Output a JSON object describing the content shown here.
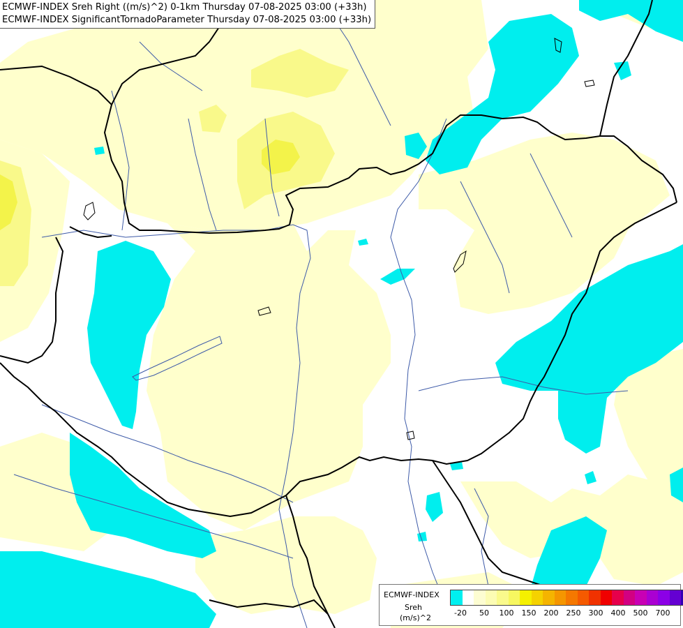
{
  "titles": {
    "line1": "ECMWF-INDEX Sreh Right ((m/s)^2) 0-1km Thursday 07-08-2025 03:00 (+33h)",
    "line2": "ECMWF-INDEX SignificantTornadoParameter Thursday 07-08-2025 03:00 (+33h)"
  },
  "legend": {
    "title": "ECMWF-INDEX",
    "variable": "Sreh",
    "unit": "(m/s)^2",
    "swatch_colors": [
      "#00f0f0",
      "#ffffff",
      "#fdfdd2",
      "#fcfcb4",
      "#fafa8c",
      "#f7f760",
      "#f5f000",
      "#f5d200",
      "#f5b400",
      "#f59600",
      "#f57800",
      "#f55a00",
      "#f03200",
      "#f00000",
      "#e6004b",
      "#d20082",
      "#c800b4",
      "#aa00d2",
      "#8c00e6",
      "#6400d2",
      "#3200b4",
      "#000082"
    ],
    "tick_labels": [
      "-20",
      "50",
      "100",
      "150",
      "200",
      "250",
      "300",
      "400",
      "500",
      "700"
    ]
  },
  "colors": {
    "cyan": "#00eeee",
    "pale_yellow": "#ffffcc",
    "yellow": "#f9f98a",
    "bright_yellow": "#f3f34a",
    "border": "#000000",
    "river": "#3d5aa8"
  }
}
